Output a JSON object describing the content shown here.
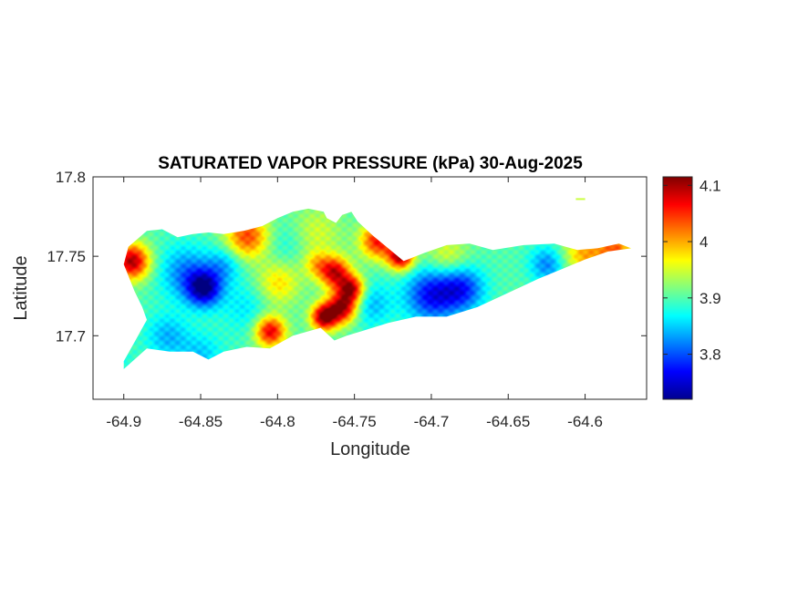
{
  "chart_data": {
    "type": "heatmap",
    "title": "SATURATED VAPOR PRESSURE (kPa) 30-Aug-2025",
    "xlabel": "Longitude",
    "ylabel": "Latitude",
    "xlim": [
      -64.92,
      -64.56
    ],
    "ylim": [
      17.66,
      17.8
    ],
    "x_ticks": [
      -64.9,
      -64.85,
      -64.8,
      -64.75,
      -64.7,
      -64.65,
      -64.6
    ],
    "x_tick_labels": [
      "-64.9",
      "-64.85",
      "-64.8",
      "-64.75",
      "-64.7",
      "-64.65",
      "-64.6"
    ],
    "y_ticks": [
      17.7,
      17.75,
      17.8
    ],
    "y_tick_labels": [
      "17.7",
      "17.75",
      "17.8"
    ],
    "colorbar": {
      "colormap": "jet",
      "clim": [
        3.72,
        4.115
      ],
      "ticks": [
        3.8,
        3.9,
        4,
        4.1
      ],
      "tick_labels": [
        "3.8",
        "3.9",
        "4",
        "4.1"
      ]
    },
    "outline_lonlat": [
      [
        -64.9,
        17.679
      ],
      [
        -64.885,
        17.692
      ],
      [
        -64.87,
        17.69
      ],
      [
        -64.855,
        17.69
      ],
      [
        -64.845,
        17.685
      ],
      [
        -64.835,
        17.69
      ],
      [
        -64.82,
        17.693
      ],
      [
        -64.805,
        17.692
      ],
      [
        -64.79,
        17.7
      ],
      [
        -64.772,
        17.705
      ],
      [
        -64.763,
        17.697
      ],
      [
        -64.755,
        17.7
      ],
      [
        -64.745,
        17.703
      ],
      [
        -64.728,
        17.708
      ],
      [
        -64.71,
        17.712
      ],
      [
        -64.69,
        17.712
      ],
      [
        -64.67,
        17.718
      ],
      [
        -64.65,
        17.727
      ],
      [
        -64.63,
        17.736
      ],
      [
        -64.615,
        17.742
      ],
      [
        -64.6,
        17.748
      ],
      [
        -64.585,
        17.753
      ],
      [
        -64.57,
        17.755
      ],
      [
        -64.578,
        17.758
      ],
      [
        -64.592,
        17.755
      ],
      [
        -64.605,
        17.754
      ],
      [
        -64.62,
        17.758
      ],
      [
        -64.64,
        17.757
      ],
      [
        -64.66,
        17.754
      ],
      [
        -64.675,
        17.758
      ],
      [
        -64.69,
        17.757
      ],
      [
        -64.705,
        17.752
      ],
      [
        -64.718,
        17.747
      ],
      [
        -64.728,
        17.755
      ],
      [
        -64.738,
        17.763
      ],
      [
        -64.748,
        17.772
      ],
      [
        -64.752,
        17.778
      ],
      [
        -64.758,
        17.776
      ],
      [
        -64.762,
        17.771
      ],
      [
        -64.768,
        17.774
      ],
      [
        -64.77,
        17.778
      ],
      [
        -64.78,
        17.78
      ],
      [
        -64.79,
        17.778
      ],
      [
        -64.8,
        17.774
      ],
      [
        -64.81,
        17.769
      ],
      [
        -64.822,
        17.766
      ],
      [
        -64.835,
        17.764
      ],
      [
        -64.845,
        17.765
      ],
      [
        -64.855,
        17.764
      ],
      [
        -64.865,
        17.762
      ],
      [
        -64.875,
        17.767
      ],
      [
        -64.885,
        17.766
      ],
      [
        -64.897,
        17.756
      ],
      [
        -64.9,
        17.745
      ],
      [
        -64.893,
        17.728
      ],
      [
        -64.888,
        17.718
      ],
      [
        -64.885,
        17.71
      ],
      [
        -64.893,
        17.696
      ],
      [
        -64.9,
        17.684
      ]
    ],
    "small_island_lonlat": [
      [
        -64.606,
        17.786
      ],
      [
        -64.6,
        17.786
      ]
    ],
    "field_background_value": 3.9,
    "field_anomalies": [
      {
        "lon": -64.895,
        "lat": 17.747,
        "value": 4.1,
        "spread_deg": 0.008
      },
      {
        "lon": -64.848,
        "lat": 17.73,
        "value": 3.74,
        "spread_deg": 0.008
      },
      {
        "lon": -64.86,
        "lat": 17.74,
        "value": 3.82,
        "spread_deg": 0.012
      },
      {
        "lon": -64.835,
        "lat": 17.745,
        "value": 3.84,
        "spread_deg": 0.008
      },
      {
        "lon": -64.82,
        "lat": 17.718,
        "value": 3.86,
        "spread_deg": 0.012
      },
      {
        "lon": -64.872,
        "lat": 17.7,
        "value": 3.84,
        "spread_deg": 0.01
      },
      {
        "lon": -64.85,
        "lat": 17.688,
        "value": 3.85,
        "spread_deg": 0.01
      },
      {
        "lon": -64.8,
        "lat": 17.733,
        "value": 3.98,
        "spread_deg": 0.01
      },
      {
        "lon": -64.795,
        "lat": 17.758,
        "value": 3.87,
        "spread_deg": 0.01
      },
      {
        "lon": -64.82,
        "lat": 17.763,
        "value": 4.04,
        "spread_deg": 0.01
      },
      {
        "lon": -64.775,
        "lat": 17.765,
        "value": 3.95,
        "spread_deg": 0.012
      },
      {
        "lon": -64.805,
        "lat": 17.703,
        "value": 4.08,
        "spread_deg": 0.007
      },
      {
        "lon": -64.77,
        "lat": 17.712,
        "value": 4.11,
        "spread_deg": 0.006
      },
      {
        "lon": -64.758,
        "lat": 17.718,
        "value": 4.1,
        "spread_deg": 0.007
      },
      {
        "lon": -64.763,
        "lat": 17.74,
        "value": 4.08,
        "spread_deg": 0.007
      },
      {
        "lon": -64.752,
        "lat": 17.73,
        "value": 4.08,
        "spread_deg": 0.006
      },
      {
        "lon": -64.775,
        "lat": 17.745,
        "value": 3.97,
        "spread_deg": 0.006
      },
      {
        "lon": -64.735,
        "lat": 17.76,
        "value": 4.06,
        "spread_deg": 0.008
      },
      {
        "lon": -64.72,
        "lat": 17.75,
        "value": 4.1,
        "spread_deg": 0.006
      },
      {
        "lon": -64.74,
        "lat": 17.72,
        "value": 3.84,
        "spread_deg": 0.01
      },
      {
        "lon": -64.7,
        "lat": 17.726,
        "value": 3.77,
        "spread_deg": 0.012
      },
      {
        "lon": -64.68,
        "lat": 17.73,
        "value": 3.79,
        "spread_deg": 0.01
      },
      {
        "lon": -64.65,
        "lat": 17.74,
        "value": 3.9,
        "spread_deg": 0.01
      },
      {
        "lon": -64.625,
        "lat": 17.745,
        "value": 3.82,
        "spread_deg": 0.008
      },
      {
        "lon": -64.6,
        "lat": 17.752,
        "value": 4.0,
        "spread_deg": 0.01
      },
      {
        "lon": -64.58,
        "lat": 17.755,
        "value": 4.02,
        "spread_deg": 0.008
      },
      {
        "lon": -64.69,
        "lat": 17.75,
        "value": 3.96,
        "spread_deg": 0.01
      },
      {
        "lon": -64.9,
        "lat": 17.68,
        "value": 3.88,
        "spread_deg": 0.008
      }
    ]
  }
}
